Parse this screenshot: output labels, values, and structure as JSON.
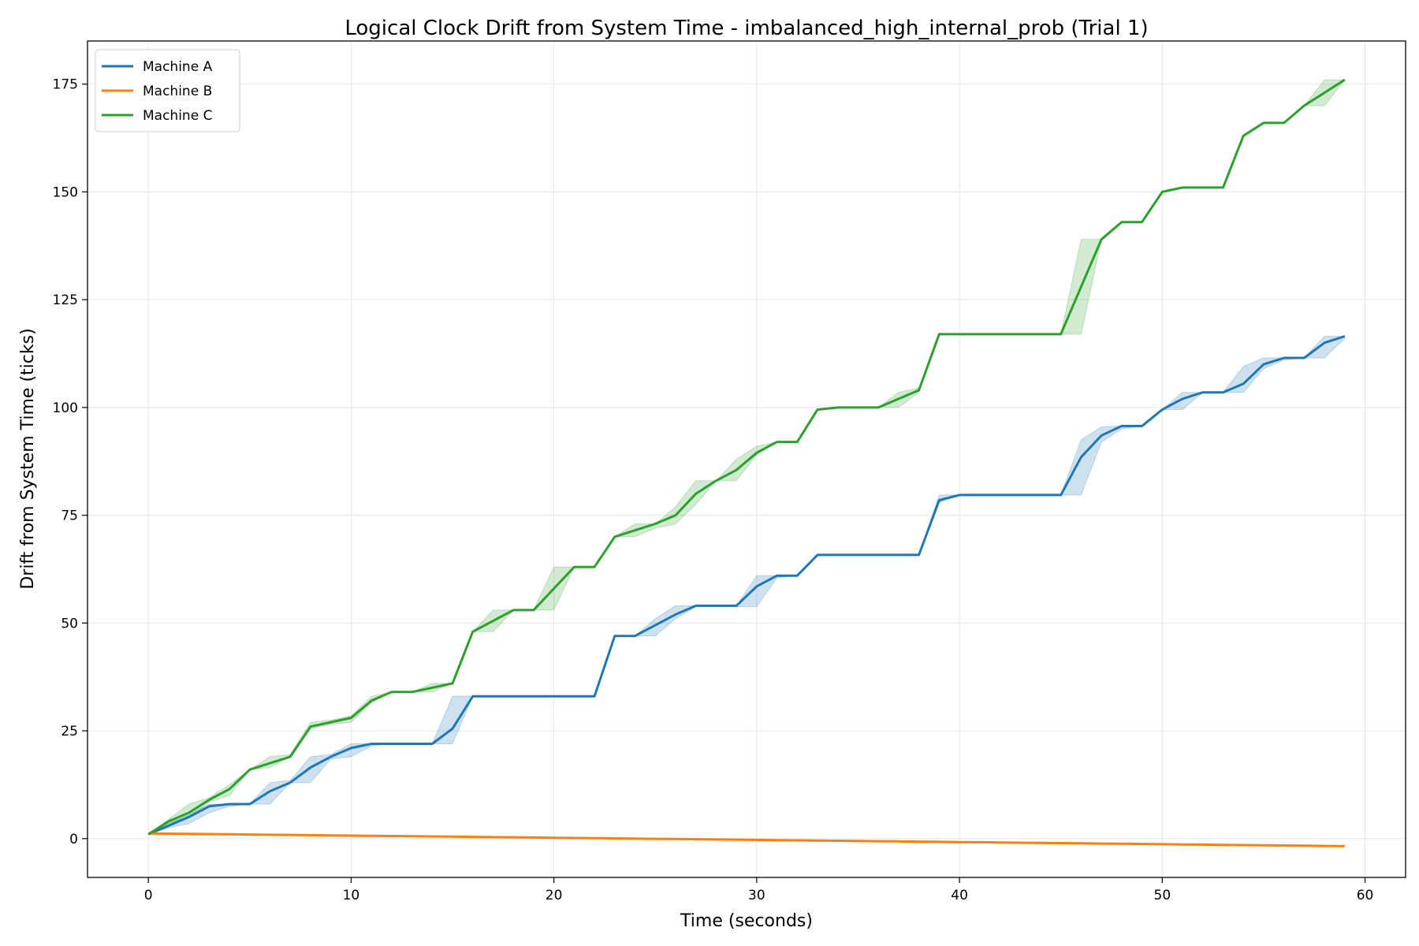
{
  "chart_data": {
    "type": "line",
    "title": "Logical Clock Drift from System Time - imbalanced_high_internal_prob (Trial 1)",
    "xlabel": "Time (seconds)",
    "ylabel": "Drift from System Time (ticks)",
    "xlim": [
      -3,
      62
    ],
    "ylim": [
      -9,
      185
    ],
    "xticks": [
      0,
      10,
      20,
      30,
      40,
      50,
      60
    ],
    "yticks": [
      0,
      25,
      50,
      75,
      100,
      125,
      150,
      175
    ],
    "grid": true,
    "legend_position": "upper-left",
    "x": [
      0,
      1,
      2,
      3,
      4,
      5,
      6,
      7,
      8,
      9,
      10,
      11,
      12,
      13,
      14,
      15,
      16,
      17,
      18,
      19,
      20,
      21,
      22,
      23,
      24,
      25,
      26,
      27,
      28,
      29,
      30,
      31,
      32,
      33,
      34,
      35,
      36,
      37,
      38,
      39,
      40,
      41,
      42,
      43,
      44,
      45,
      46,
      47,
      48,
      49,
      50,
      51,
      52,
      53,
      54,
      55,
      56,
      57,
      58,
      59
    ],
    "series": [
      {
        "name": "Machine A",
        "color": "#1f77b4",
        "values": [
          1,
          3,
          5,
          7.5,
          8,
          8,
          11,
          13,
          16.5,
          19,
          21,
          22,
          22,
          22,
          22,
          25.5,
          33,
          33,
          33,
          33,
          33,
          33,
          33,
          47,
          47,
          49.5,
          52,
          54,
          54,
          54,
          58.5,
          61,
          61,
          65.8,
          65.8,
          65.8,
          65.8,
          65.8,
          65.8,
          78.5,
          79.7,
          79.7,
          79.7,
          79.7,
          79.7,
          79.7,
          88.5,
          93.5,
          95.7,
          95.7,
          99.5,
          102,
          103.5,
          103.5,
          105.5,
          110,
          111.5,
          111.5,
          115,
          116.5
        ],
        "band_low": [
          1,
          2.5,
          3.5,
          6,
          7.5,
          8,
          8,
          13,
          13,
          18.5,
          19,
          21.5,
          22,
          22,
          22,
          22,
          33,
          33,
          33,
          33,
          33,
          33,
          33,
          47,
          47,
          47,
          51,
          53.8,
          53.8,
          53.8,
          53.8,
          60.5,
          61,
          65.8,
          65.8,
          65.8,
          65.8,
          65.8,
          65.8,
          78,
          79.7,
          79.7,
          79.7,
          79.7,
          79.7,
          79.7,
          79.7,
          92,
          95,
          95.7,
          99.5,
          99.5,
          103.5,
          103.5,
          103.5,
          109,
          111,
          111.5,
          111.5,
          116
        ],
        "band_high": [
          1,
          3.5,
          5.5,
          8,
          8,
          8,
          13,
          13.5,
          19,
          19.5,
          22,
          22,
          22,
          22,
          22,
          33,
          33,
          33,
          33,
          33,
          33,
          33,
          33,
          47,
          47,
          51,
          54,
          54,
          54,
          54,
          61,
          61,
          61,
          65.8,
          65.8,
          65.8,
          65.8,
          65.8,
          65.8,
          79.7,
          79.7,
          79.7,
          79.7,
          79.7,
          79.7,
          79.7,
          92.5,
          95.5,
          95.7,
          95.7,
          99.5,
          103.5,
          103.5,
          103.5,
          109.5,
          111.5,
          111.5,
          111.5,
          116.5,
          116.5
        ]
      },
      {
        "name": "Machine B",
        "color": "#ff7f0e",
        "values": [
          1.2,
          1.15,
          1.1,
          1.05,
          1.0,
          0.95,
          0.9,
          0.85,
          0.8,
          0.75,
          0.7,
          0.65,
          0.6,
          0.55,
          0.5,
          0.45,
          0.4,
          0.35,
          0.3,
          0.25,
          0.2,
          0.15,
          0.1,
          0.05,
          0,
          -0.05,
          -0.1,
          -0.15,
          -0.2,
          -0.25,
          -0.3,
          -0.35,
          -0.4,
          -0.45,
          -0.5,
          -0.55,
          -0.6,
          -0.65,
          -0.7,
          -0.75,
          -0.8,
          -0.85,
          -0.9,
          -0.95,
          -1.0,
          -1.05,
          -1.1,
          -1.15,
          -1.2,
          -1.25,
          -1.3,
          -1.35,
          -1.4,
          -1.45,
          -1.5,
          -1.55,
          -1.6,
          -1.65,
          -1.7,
          -1.75
        ]
      },
      {
        "name": "Machine C",
        "color": "#2ca02c",
        "values": [
          1,
          4,
          6,
          9,
          11.5,
          16,
          17.5,
          19,
          26,
          27,
          28,
          32,
          34,
          34,
          35,
          36,
          48,
          50.5,
          53,
          53,
          58,
          63,
          63,
          70,
          71.5,
          73,
          75,
          80,
          83,
          85.5,
          89.5,
          92,
          92,
          99.5,
          100,
          100,
          100,
          102,
          104,
          117,
          117,
          117,
          117,
          117,
          117,
          117,
          128,
          139,
          143,
          143,
          150,
          151,
          151,
          151,
          163,
          166,
          166,
          170,
          173,
          176
        ],
        "band_low": [
          1,
          3.5,
          5,
          8.5,
          10,
          16,
          16.5,
          19,
          25.5,
          26.5,
          27,
          31.5,
          34,
          34,
          34,
          36,
          48,
          48,
          53,
          53,
          53,
          63,
          63,
          70,
          70,
          72,
          73,
          77.5,
          83,
          83,
          89,
          92,
          92,
          99.5,
          100,
          100,
          100,
          100,
          103.5,
          117,
          117,
          117,
          117,
          117,
          117,
          117,
          117,
          139,
          143,
          143,
          150,
          151,
          151,
          151,
          163,
          166,
          166,
          170,
          170,
          176
        ],
        "band_high": [
          1,
          4.5,
          8,
          9.5,
          12.5,
          16,
          19,
          19.5,
          27,
          27.5,
          28.5,
          33,
          34,
          34,
          36,
          36,
          48,
          53,
          53,
          53,
          63,
          63,
          63,
          70,
          73,
          73,
          77,
          83,
          83,
          88,
          91,
          92,
          92,
          99.5,
          100,
          100,
          100,
          103.5,
          104.5,
          117,
          117,
          117,
          117,
          117,
          117,
          117,
          139,
          139,
          143,
          143,
          150,
          151,
          151,
          151,
          163,
          166,
          166,
          170,
          176,
          176
        ]
      }
    ]
  }
}
